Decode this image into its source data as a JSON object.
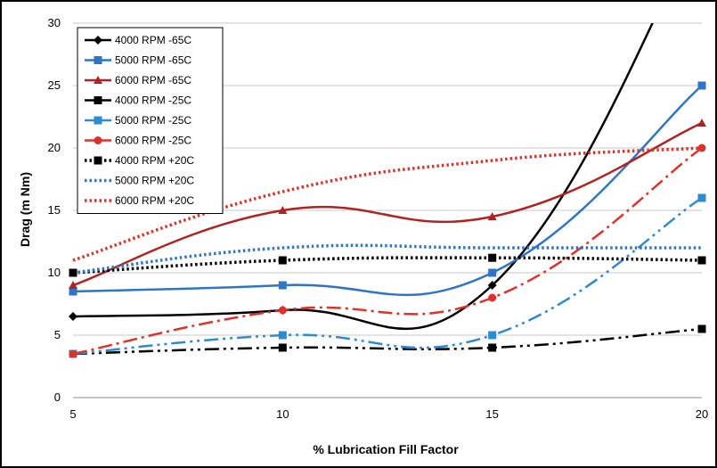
{
  "chart_data": {
    "type": "line",
    "xlabel": "% Lubrication Fill Factor",
    "ylabel": "Drag (m Nm)",
    "x": [
      5,
      10,
      15,
      20
    ],
    "x_ticks": [
      "5",
      "10",
      "15",
      "20"
    ],
    "y_ticks": [
      "0",
      "5",
      "10",
      "15",
      "20",
      "25",
      "30"
    ],
    "xlim": [
      5,
      20
    ],
    "ylim": [
      0,
      30
    ],
    "grid": "horizontal",
    "legend_position": "top-left",
    "series": [
      {
        "name": "4000 RPM -65C",
        "values": [
          6.5,
          7,
          9,
          38
        ],
        "color": "#000000",
        "dash": "solid",
        "marker": "diamond"
      },
      {
        "name": "5000 RPM -65C",
        "values": [
          8.5,
          9,
          10,
          25
        ],
        "color": "#2E75C6",
        "dash": "solid",
        "marker": "square"
      },
      {
        "name": "6000 RPM -65C",
        "values": [
          9,
          15,
          14.5,
          22
        ],
        "color": "#B22222",
        "dash": "solid",
        "marker": "triangle"
      },
      {
        "name": "4000 RPM -25C",
        "values": [
          3.5,
          4,
          4,
          5.5
        ],
        "color": "#000000",
        "dash": "dashdotdot",
        "marker": "square"
      },
      {
        "name": "5000 RPM -25C",
        "values": [
          3.5,
          5,
          5,
          16
        ],
        "color": "#2E8BD0",
        "dash": "dashdotdot",
        "marker": "square"
      },
      {
        "name": "6000 RPM -25C",
        "values": [
          3.5,
          7,
          8,
          20
        ],
        "color": "#E0302A",
        "dash": "dashdot",
        "marker": "circle"
      },
      {
        "name": "4000 RPM +20C",
        "values": [
          10,
          11,
          11.2,
          11
        ],
        "color": "#000000",
        "dash": "dotted",
        "marker": "square"
      },
      {
        "name": "5000 RPM +20C",
        "values": [
          10,
          12,
          12,
          12
        ],
        "color": "#2E75C6",
        "dash": "dotted",
        "marker": "none"
      },
      {
        "name": "6000 RPM +20C",
        "values": [
          11,
          16.5,
          19,
          20
        ],
        "color": "#E0302A",
        "dash": "dotted",
        "marker": "none"
      }
    ]
  }
}
